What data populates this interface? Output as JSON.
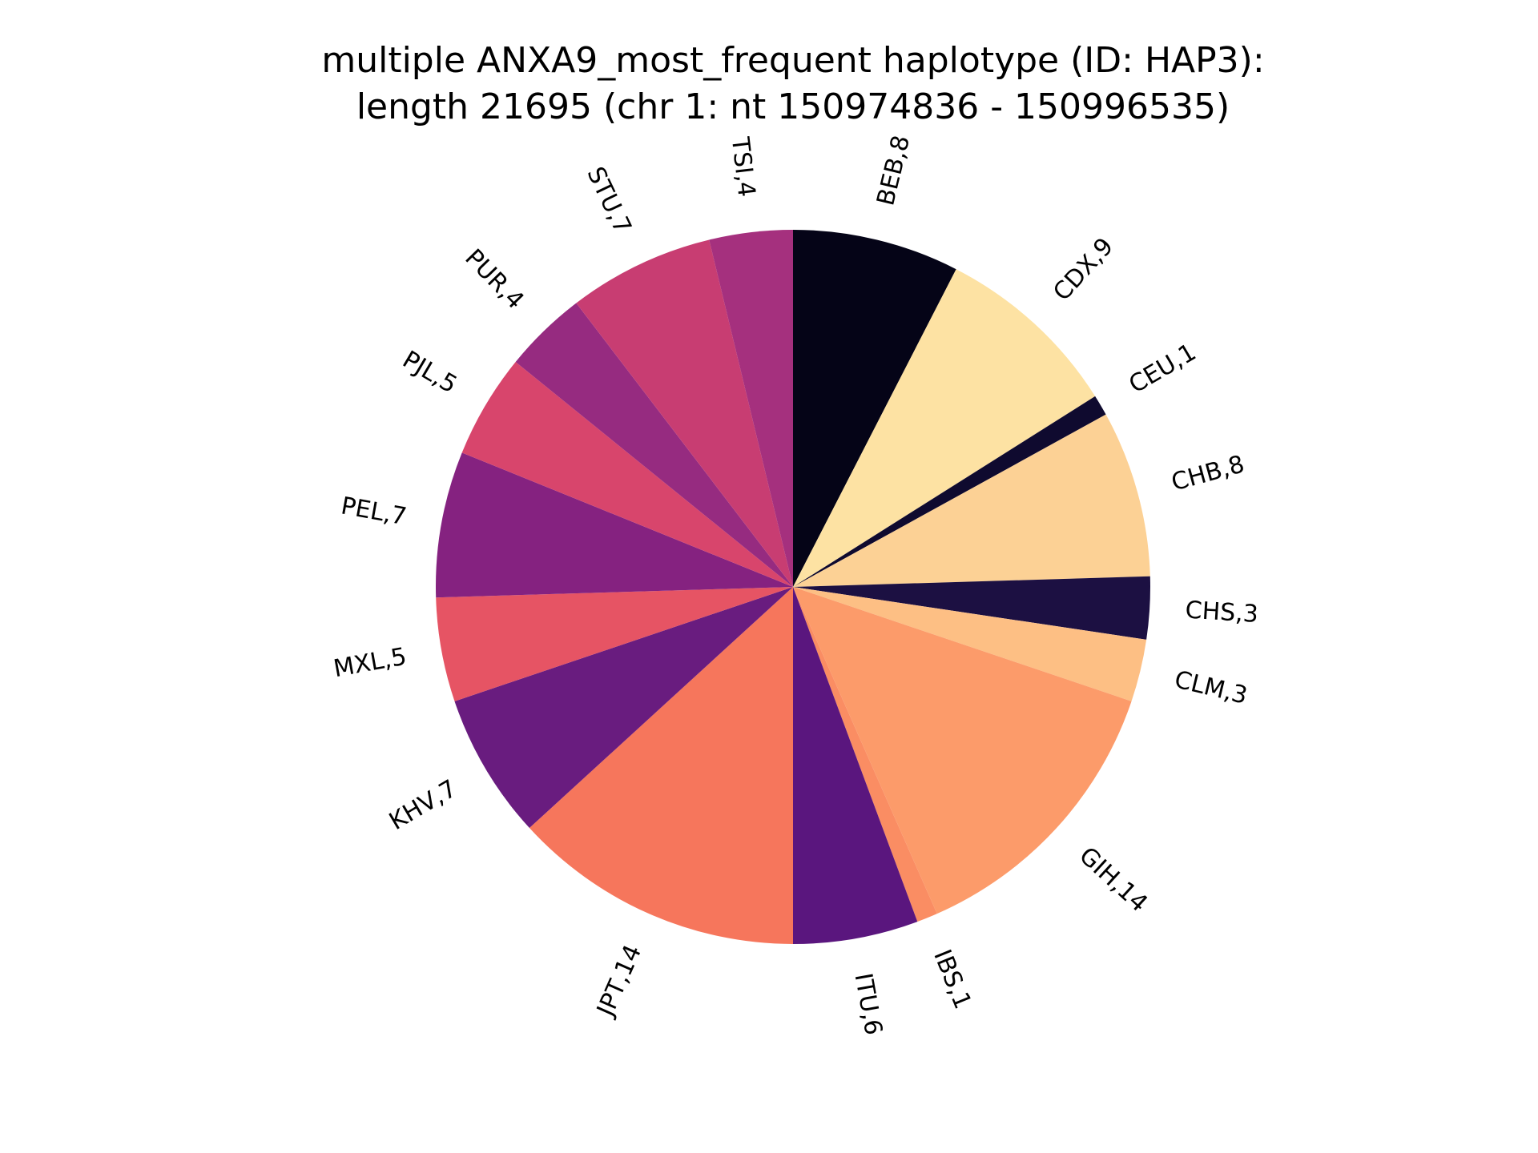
{
  "chart_data": {
    "type": "pie",
    "title": [
      "multiple ANXA9_most_frequent haplotype (ID: HAP3):",
      "length 21695 (chr 1: nt 150974836 - 150996535)"
    ],
    "start_angle_deg": 90,
    "direction": "clockwise",
    "label_format": "{name},{value}",
    "slices": [
      {
        "name": "BEB",
        "value": 8,
        "color": "#050417"
      },
      {
        "name": "CDX",
        "value": 9,
        "color": "#fde2a3"
      },
      {
        "name": "CEU",
        "value": 1,
        "color": "#0f0a2f"
      },
      {
        "name": "CHB",
        "value": 8,
        "color": "#fcd195"
      },
      {
        "name": "CHS",
        "value": 3,
        "color": "#1c1042"
      },
      {
        "name": "CLM",
        "value": 3,
        "color": "#fdbf84"
      },
      {
        "name": "GIH",
        "value": 14,
        "color": "#fc9b6a"
      },
      {
        "name": "IBS",
        "value": 1,
        "color": "#fa8d63"
      },
      {
        "name": "ITU",
        "value": 6,
        "color": "#5a167e"
      },
      {
        "name": "JPT",
        "value": 14,
        "color": "#f6765c"
      },
      {
        "name": "KHV",
        "value": 7,
        "color": "#691c7f"
      },
      {
        "name": "MXL",
        "value": 5,
        "color": "#e65464"
      },
      {
        "name": "PEL",
        "value": 7,
        "color": "#852280"
      },
      {
        "name": "PJL",
        "value": 5,
        "color": "#d8456c"
      },
      {
        "name": "PUR",
        "value": 4,
        "color": "#962b80"
      },
      {
        "name": "STU",
        "value": 7,
        "color": "#c83d72"
      },
      {
        "name": "TSI",
        "value": 4,
        "color": "#a5307e"
      }
    ]
  }
}
